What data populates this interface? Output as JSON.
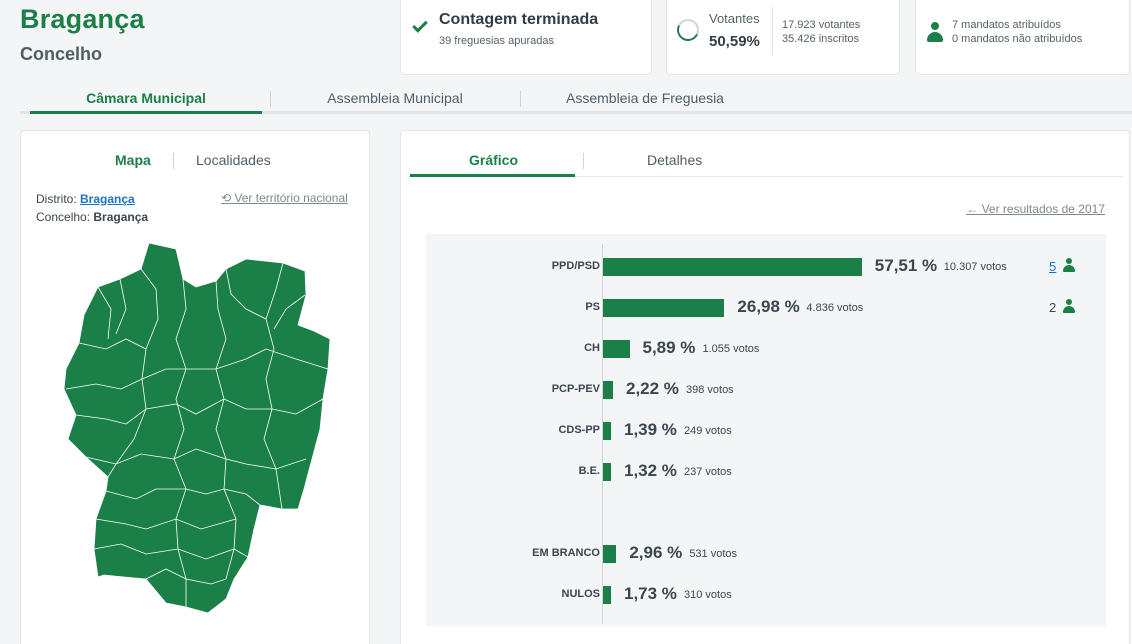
{
  "header": {
    "title": "Bragança",
    "subtitle": "Concelho"
  },
  "status_card": {
    "title": "Contagem terminada",
    "subtitle": "39 freguesias apuradas"
  },
  "turnout_card": {
    "label": "Votantes",
    "percent": "50,59%",
    "voters": "17.923 votantes",
    "registered": "35.426 inscritos"
  },
  "mandates_card": {
    "assigned": "7 mandatos atribuídos",
    "unassigned": "0 mandatos não atribuídos"
  },
  "main_tabs": [
    {
      "label": "Câmara Municipal",
      "active": true
    },
    {
      "label": "Assembleia Municipal",
      "active": false
    },
    {
      "label": "Assembleia de Freguesia",
      "active": false
    }
  ],
  "map_panel": {
    "tabs": [
      "Mapa",
      "Localidades"
    ],
    "district_label": "Distrito:",
    "district_value": "Bragança",
    "county_label": "Concelho:",
    "county_value": "Bragança",
    "national_link": "Ver território nacional",
    "map_color": "#1b7f48"
  },
  "results_panel": {
    "tabs": [
      "Gráfico",
      "Detalhes"
    ],
    "previous_link": "Ver resultados de 2017"
  },
  "chart_data": {
    "type": "bar",
    "orientation": "horizontal",
    "categories": [
      "PPD/PSD",
      "PS",
      "CH",
      "PCP-PEV",
      "CDS-PP",
      "B.E.",
      "EM BRANCO",
      "NULOS"
    ],
    "values": [
      57.51,
      26.98,
      5.89,
      2.22,
      1.39,
      1.32,
      2.96,
      1.73
    ],
    "value_labels": [
      "57,51 %",
      "26,98 %",
      "5,89 %",
      "2,22 %",
      "1,39 %",
      "1,32 %",
      "2,96 %",
      "1,73 %"
    ],
    "votes": [
      "10.307 votos",
      "4.836 votos",
      "1.055 votos",
      "398 votos",
      "249 votos",
      "237 votos",
      "531 votos",
      "310 votos"
    ],
    "mandates": [
      "5",
      "2",
      "",
      "",
      "",
      "",
      "",
      ""
    ],
    "bar_color": "#1b7f48"
  }
}
